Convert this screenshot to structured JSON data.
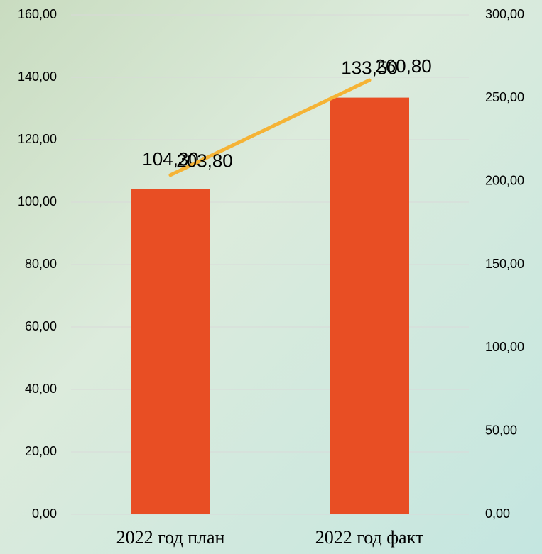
{
  "chart_data": {
    "type": "bar_line",
    "categories": [
      "2022 год план",
      "2022 год факт"
    ],
    "series": [
      {
        "type": "bar",
        "color": "#e84e24",
        "values": [
          104.3,
          133.5
        ],
        "value_labels": [
          "104,30",
          "133,50"
        ]
      },
      {
        "type": "line",
        "axis": "y2",
        "color": "#f5b335",
        "values": [
          203.8,
          260.8
        ],
        "value_labels": [
          "203,80",
          "260,80"
        ]
      }
    ],
    "ylim": [
      0,
      160
    ],
    "yticks": [
      {
        "value": 0,
        "label": "0,00"
      },
      {
        "value": 20,
        "label": "20,00"
      },
      {
        "value": 40,
        "label": "40,00"
      },
      {
        "value": 60,
        "label": "60,00"
      },
      {
        "value": 80,
        "label": "80,00"
      },
      {
        "value": 100,
        "label": "100,00"
      },
      {
        "value": 120,
        "label": "120,00"
      },
      {
        "value": 140,
        "label": "140,00"
      },
      {
        "value": 160,
        "label": "160,00"
      }
    ],
    "y2lim": [
      0,
      300
    ],
    "y2ticks": [
      {
        "value": 0,
        "label": "0,00"
      },
      {
        "value": 50,
        "label": "50,00"
      },
      {
        "value": 100,
        "label": "100,00"
      },
      {
        "value": 150,
        "label": "150,00"
      },
      {
        "value": 200,
        "label": "200,00"
      },
      {
        "value": 250,
        "label": "250,00"
      },
      {
        "value": 300,
        "label": "300,00"
      }
    ],
    "grid": true
  }
}
